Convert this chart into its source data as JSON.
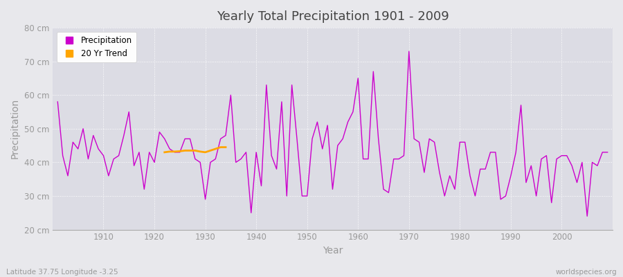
{
  "title": "Yearly Total Precipitation 1901 - 2009",
  "xlabel": "Year",
  "ylabel": "Precipitation",
  "subtitle": "Latitude 37.75 Longitude -3.25",
  "watermark": "worldspecies.org",
  "line_color": "#CC00CC",
  "trend_color": "#FFA500",
  "bg_color": "#E8E8EC",
  "plot_bg_color": "#DCDCE4",
  "grid_color": "#FFFFFF",
  "tick_color": "#999999",
  "title_color": "#444444",
  "label_color": "#999999",
  "ylim": [
    20,
    80
  ],
  "yticks": [
    20,
    30,
    40,
    50,
    60,
    70,
    80
  ],
  "ytick_labels": [
    "20 cm",
    "30 cm",
    "40 cm",
    "50 cm",
    "60 cm",
    "70 cm",
    "80 cm"
  ],
  "years": [
    1901,
    1902,
    1903,
    1904,
    1905,
    1906,
    1907,
    1908,
    1909,
    1910,
    1911,
    1912,
    1913,
    1914,
    1915,
    1916,
    1917,
    1918,
    1919,
    1920,
    1921,
    1922,
    1923,
    1924,
    1925,
    1926,
    1927,
    1928,
    1929,
    1930,
    1931,
    1932,
    1933,
    1934,
    1935,
    1936,
    1937,
    1938,
    1939,
    1940,
    1941,
    1942,
    1943,
    1944,
    1945,
    1946,
    1947,
    1948,
    1949,
    1950,
    1951,
    1952,
    1953,
    1954,
    1955,
    1956,
    1957,
    1958,
    1959,
    1960,
    1961,
    1962,
    1963,
    1964,
    1965,
    1966,
    1967,
    1968,
    1969,
    1970,
    1971,
    1972,
    1973,
    1974,
    1975,
    1976,
    1977,
    1978,
    1979,
    1980,
    1981,
    1982,
    1983,
    1984,
    1985,
    1986,
    1987,
    1988,
    1989,
    1990,
    1991,
    1992,
    1993,
    1994,
    1995,
    1996,
    1997,
    1998,
    1999,
    2000,
    2001,
    2002,
    2003,
    2004,
    2005,
    2006,
    2007,
    2008,
    2009
  ],
  "precip": [
    58,
    42,
    36,
    46,
    44,
    50,
    41,
    48,
    44,
    42,
    36,
    41,
    42,
    48,
    55,
    39,
    43,
    32,
    43,
    40,
    49,
    47,
    44,
    43,
    43,
    47,
    47,
    41,
    40,
    29,
    40,
    41,
    47,
    48,
    60,
    40,
    41,
    43,
    25,
    43,
    33,
    63,
    42,
    38,
    58,
    30,
    63,
    47,
    30,
    30,
    47,
    52,
    44,
    51,
    32,
    45,
    47,
    52,
    55,
    65,
    41,
    41,
    67,
    47,
    32,
    31,
    41,
    41,
    42,
    73,
    47,
    46,
    37,
    47,
    46,
    37,
    30,
    36,
    32,
    46,
    46,
    36,
    30,
    38,
    38,
    43,
    43,
    29,
    30,
    36,
    43,
    57,
    34,
    39,
    30,
    41,
    42,
    28,
    41,
    42,
    42,
    39,
    34,
    40,
    24,
    40,
    39,
    43,
    43
  ],
  "trend_years": [
    1922,
    1923,
    1924,
    1925,
    1926,
    1927,
    1928,
    1929,
    1930,
    1931,
    1932,
    1933,
    1934
  ],
  "trend_values": [
    43,
    43.2,
    43.2,
    43.3,
    43.5,
    43.5,
    43.5,
    43.2,
    43.0,
    43.5,
    44.0,
    44.5,
    44.5
  ],
  "xlim": [
    1900,
    2010
  ],
  "decade_ticks": [
    1910,
    1920,
    1930,
    1940,
    1950,
    1960,
    1970,
    1980,
    1990,
    2000
  ]
}
